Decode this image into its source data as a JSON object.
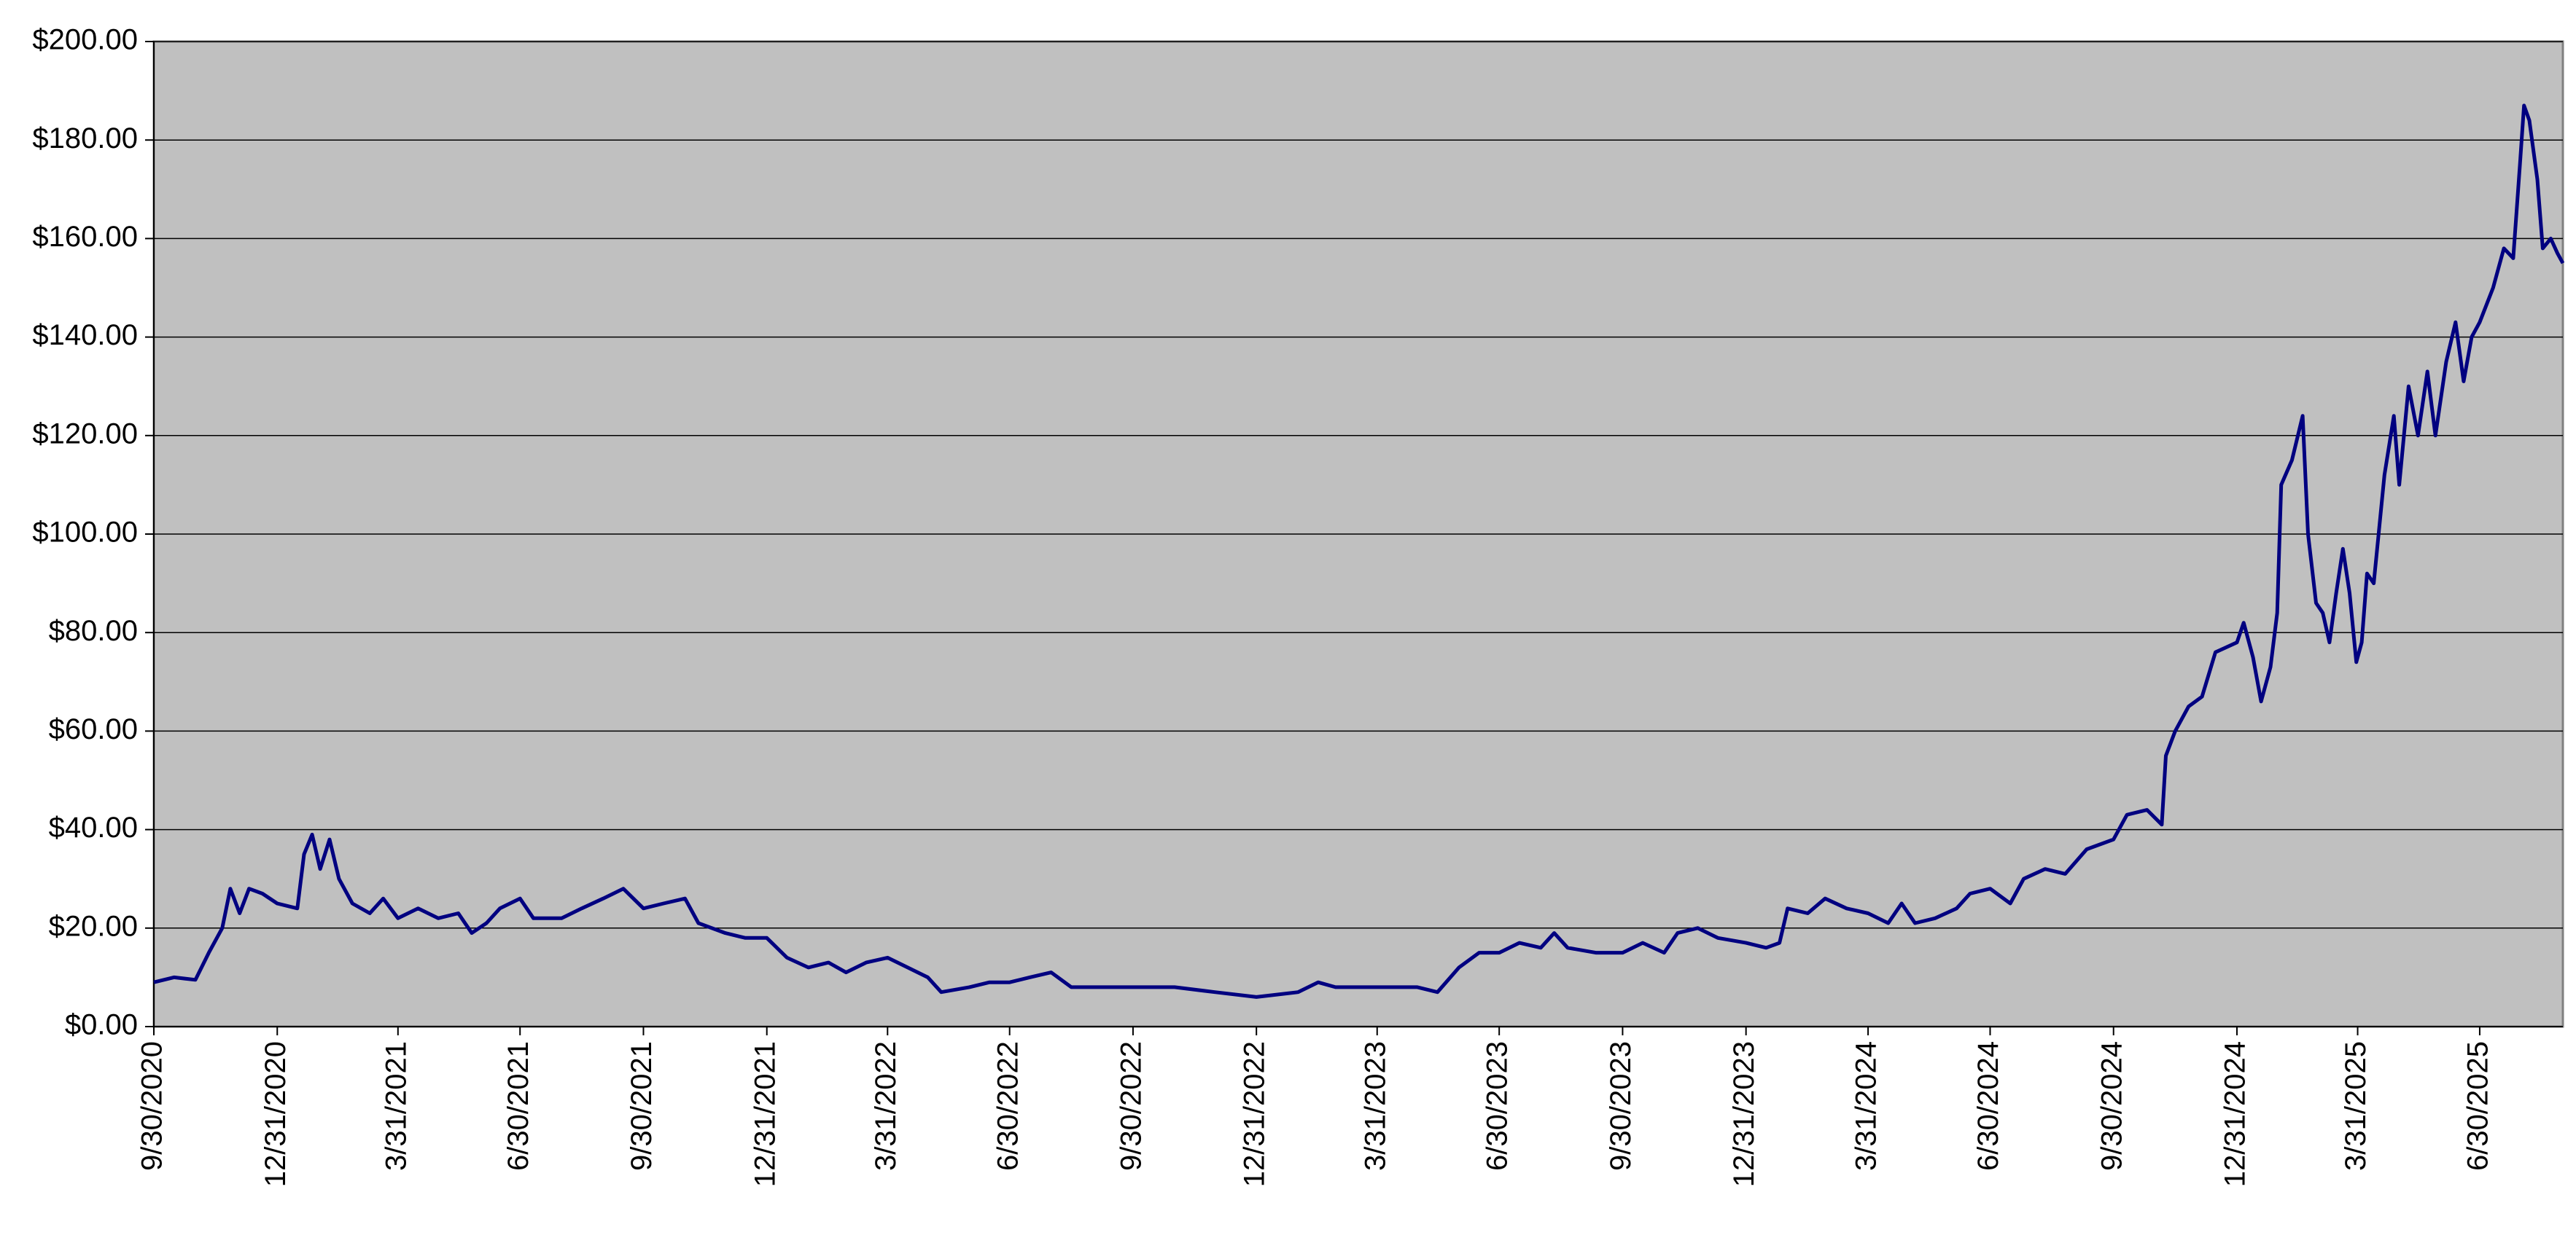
{
  "chart_data": {
    "type": "line",
    "x": [
      "2020-09-30",
      "2020-10-15",
      "2020-10-31",
      "2020-11-10",
      "2020-11-20",
      "2020-11-26",
      "2020-12-03",
      "2020-12-10",
      "2020-12-20",
      "2020-12-31",
      "2021-01-15",
      "2021-01-20",
      "2021-01-26",
      "2021-02-01",
      "2021-02-08",
      "2021-02-15",
      "2021-02-25",
      "2021-03-10",
      "2021-03-20",
      "2021-03-31",
      "2021-04-15",
      "2021-04-30",
      "2021-05-15",
      "2021-05-25",
      "2021-06-05",
      "2021-06-15",
      "2021-06-30",
      "2021-07-10",
      "2021-07-31",
      "2021-08-15",
      "2021-08-31",
      "2021-09-15",
      "2021-09-30",
      "2021-10-15",
      "2021-10-31",
      "2021-11-10",
      "2021-11-30",
      "2021-12-15",
      "2021-12-31",
      "2022-01-15",
      "2022-01-31",
      "2022-02-15",
      "2022-02-28",
      "2022-03-15",
      "2022-03-31",
      "2022-04-15",
      "2022-04-30",
      "2022-05-10",
      "2022-05-31",
      "2022-06-15",
      "2022-06-30",
      "2022-07-15",
      "2022-07-31",
      "2022-08-15",
      "2022-08-31",
      "2022-09-30",
      "2022-10-31",
      "2022-11-30",
      "2022-12-31",
      "2023-01-31",
      "2023-02-15",
      "2023-02-28",
      "2023-03-31",
      "2023-04-30",
      "2023-05-15",
      "2023-05-31",
      "2023-06-15",
      "2023-06-30",
      "2023-07-15",
      "2023-07-31",
      "2023-08-10",
      "2023-08-20",
      "2023-09-10",
      "2023-09-30",
      "2023-10-15",
      "2023-10-31",
      "2023-11-10",
      "2023-11-25",
      "2023-12-10",
      "2023-12-31",
      "2024-01-15",
      "2024-01-25",
      "2024-01-31",
      "2024-02-15",
      "2024-02-28",
      "2024-03-15",
      "2024-03-31",
      "2024-04-15",
      "2024-04-25",
      "2024-05-05",
      "2024-05-20",
      "2024-06-05",
      "2024-06-15",
      "2024-06-30",
      "2024-07-15",
      "2024-07-25",
      "2024-08-10",
      "2024-08-25",
      "2024-09-10",
      "2024-09-30",
      "2024-10-10",
      "2024-10-25",
      "2024-11-05",
      "2024-11-08",
      "2024-11-15",
      "2024-11-25",
      "2024-12-05",
      "2024-12-15",
      "2024-12-31",
      "2025-01-05",
      "2025-01-12",
      "2025-01-18",
      "2025-01-25",
      "2025-01-30",
      "2025-02-02",
      "2025-02-10",
      "2025-02-18",
      "2025-02-22",
      "2025-02-28",
      "2025-03-05",
      "2025-03-10",
      "2025-03-15",
      "2025-03-20",
      "2025-03-25",
      "2025-03-30",
      "2025-04-03",
      "2025-04-07",
      "2025-04-12",
      "2025-04-20",
      "2025-04-27",
      "2025-05-01",
      "2025-05-08",
      "2025-05-15",
      "2025-05-22",
      "2025-05-28",
      "2025-06-05",
      "2025-06-12",
      "2025-06-18",
      "2025-06-24",
      "2025-06-30",
      "2025-07-10",
      "2025-07-18",
      "2025-07-25",
      "2025-07-30",
      "2025-08-02",
      "2025-08-06",
      "2025-08-12",
      "2025-08-16",
      "2025-08-22",
      "2025-08-27",
      "2025-08-31"
    ],
    "values": [
      9,
      10,
      9.5,
      15,
      20,
      28,
      23,
      28,
      27,
      25,
      24,
      35,
      39,
      32,
      38,
      30,
      25,
      23,
      26,
      22,
      24,
      22,
      23,
      19,
      21,
      24,
      26,
      22,
      22,
      24,
      26,
      28,
      24,
      25,
      26,
      21,
      19,
      18,
      18,
      14,
      12,
      13,
      11,
      13,
      14,
      12,
      10,
      7,
      8,
      9,
      9,
      10,
      11,
      8,
      8,
      8,
      8,
      7,
      6,
      7,
      9,
      8,
      8,
      8,
      7,
      12,
      15,
      15,
      17,
      16,
      19,
      16,
      15,
      15,
      17,
      15,
      19,
      20,
      18,
      17,
      16,
      17,
      24,
      23,
      26,
      24,
      23,
      21,
      25,
      21,
      22,
      24,
      27,
      28,
      25,
      30,
      32,
      31,
      36,
      38,
      43,
      44,
      41,
      55,
      60,
      65,
      67,
      76,
      78,
      82,
      75,
      66,
      73,
      84,
      110,
      115,
      124,
      100,
      86,
      84,
      78,
      88,
      97,
      88,
      74,
      78,
      92,
      90,
      112,
      124,
      110,
      130,
      120,
      133,
      120,
      135,
      143,
      131,
      140,
      143,
      150,
      158,
      156,
      175,
      187,
      184,
      172,
      158,
      160,
      157,
      155
    ],
    "color": "#000080",
    "xlim": [
      "2020-09-30",
      "2025-08-31"
    ],
    "xticks": [
      {
        "value": "2020-09-30",
        "label": "9/30/2020"
      },
      {
        "value": "2020-12-31",
        "label": "12/31/2020"
      },
      {
        "value": "2021-03-31",
        "label": "3/31/2021"
      },
      {
        "value": "2021-06-30",
        "label": "6/30/2021"
      },
      {
        "value": "2021-09-30",
        "label": "9/30/2021"
      },
      {
        "value": "2021-12-31",
        "label": "12/31/2021"
      },
      {
        "value": "2022-03-31",
        "label": "3/31/2022"
      },
      {
        "value": "2022-06-30",
        "label": "6/30/2022"
      },
      {
        "value": "2022-09-30",
        "label": "9/30/2022"
      },
      {
        "value": "2022-12-31",
        "label": "12/31/2022"
      },
      {
        "value": "2023-03-31",
        "label": "3/31/2023"
      },
      {
        "value": "2023-06-30",
        "label": "6/30/2023"
      },
      {
        "value": "2023-09-30",
        "label": "9/30/2023"
      },
      {
        "value": "2023-12-31",
        "label": "12/31/2023"
      },
      {
        "value": "2024-03-31",
        "label": "3/31/2024"
      },
      {
        "value": "2024-06-30",
        "label": "6/30/2024"
      },
      {
        "value": "2024-09-30",
        "label": "9/30/2024"
      },
      {
        "value": "2024-12-31",
        "label": "12/31/2024"
      },
      {
        "value": "2025-03-31",
        "label": "3/31/2025"
      },
      {
        "value": "2025-06-30",
        "label": "6/30/2025"
      }
    ],
    "ylim": [
      0,
      200
    ],
    "yticks": [
      {
        "value": 0,
        "label": "$0.00"
      },
      {
        "value": 20,
        "label": "$20.00"
      },
      {
        "value": 40,
        "label": "$40.00"
      },
      {
        "value": 60,
        "label": "$60.00"
      },
      {
        "value": 80,
        "label": "$80.00"
      },
      {
        "value": 100,
        "label": "$100.00"
      },
      {
        "value": 120,
        "label": "$120.00"
      },
      {
        "value": 140,
        "label": "$140.00"
      },
      {
        "value": 160,
        "label": "$160.00"
      },
      {
        "value": 180,
        "label": "$180.00"
      },
      {
        "value": 200,
        "label": "$200.00"
      }
    ],
    "grid": true
  }
}
